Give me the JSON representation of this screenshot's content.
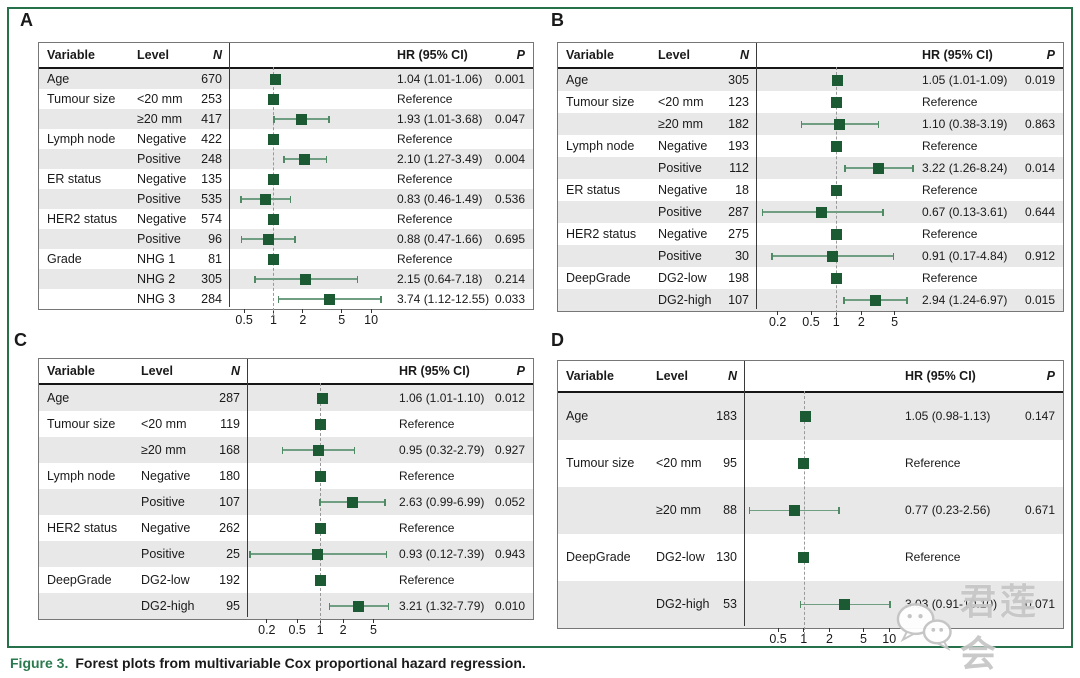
{
  "figure": {
    "caption_label": "Figure 3.",
    "caption_text": "Forest plots from multivariable Cox proportional hazard regression.",
    "watermark": "君莲会"
  },
  "colors": {
    "marker_green": "#1b5a33",
    "ci_line_green": "#6f9e82",
    "ci_cap_green": "#4e8a64",
    "stripe_gray": "#e8e8e8",
    "border_green": "#26704a",
    "caption_green": "#2b7a4e",
    "ref_line_gray": "#999999"
  },
  "columns": {
    "variable": "Variable",
    "level": "Level",
    "n": "N",
    "hr": "HR (95% CI)",
    "p": "P"
  },
  "chart_data": [
    {
      "type": "forest",
      "panel": "A",
      "scale": "log",
      "ref_line": 1,
      "axis_ticks": [
        0.5,
        1,
        2,
        5,
        10
      ],
      "axis_range": [
        0.35,
        16
      ],
      "rows": [
        {
          "variable": "Age",
          "level": "",
          "n": 670,
          "hr": 1.04,
          "lo": 1.01,
          "hi": 1.06,
          "hr_text": "1.04 (1.01-1.06)",
          "p": "0.001"
        },
        {
          "variable": "Tumour size",
          "level": "<20 mm",
          "n": 253,
          "ref": true,
          "hr_text": "Reference",
          "p": ""
        },
        {
          "variable": "",
          "level": "≥20 mm",
          "n": 417,
          "hr": 1.93,
          "lo": 1.01,
          "hi": 3.68,
          "hr_text": "1.93 (1.01-3.68)",
          "p": "0.047"
        },
        {
          "variable": "Lymph node",
          "level": "Negative",
          "n": 422,
          "ref": true,
          "hr_text": "Reference",
          "p": ""
        },
        {
          "variable": "",
          "level": "Positive",
          "n": 248,
          "hr": 2.1,
          "lo": 1.27,
          "hi": 3.49,
          "hr_text": "2.10 (1.27-3.49)",
          "p": "0.004"
        },
        {
          "variable": "ER status",
          "level": "Negative",
          "n": 135,
          "ref": true,
          "hr_text": "Reference",
          "p": ""
        },
        {
          "variable": "",
          "level": "Positive",
          "n": 535,
          "hr": 0.83,
          "lo": 0.46,
          "hi": 1.49,
          "hr_text": "0.83 (0.46-1.49)",
          "p": "0.536"
        },
        {
          "variable": "HER2 status",
          "level": "Negative",
          "n": 574,
          "ref": true,
          "hr_text": "Reference",
          "p": ""
        },
        {
          "variable": "",
          "level": "Positive",
          "n": 96,
          "hr": 0.88,
          "lo": 0.47,
          "hi": 1.66,
          "hr_text": "0.88 (0.47-1.66)",
          "p": "0.695"
        },
        {
          "variable": "Grade",
          "level": "NHG 1",
          "n": 81,
          "ref": true,
          "hr_text": "Reference",
          "p": ""
        },
        {
          "variable": "",
          "level": "NHG 2",
          "n": 305,
          "hr": 2.15,
          "lo": 0.64,
          "hi": 7.18,
          "hr_text": "2.15 (0.64-7.18)",
          "p": "0.214"
        },
        {
          "variable": "",
          "level": "NHG 3",
          "n": 284,
          "hr": 3.74,
          "lo": 1.12,
          "hi": 12.55,
          "hr_text": "3.74 (1.12-12.55)",
          "p": "0.033"
        }
      ]
    },
    {
      "type": "forest",
      "panel": "B",
      "scale": "log",
      "ref_line": 1,
      "axis_ticks": [
        0.2,
        0.5,
        1,
        2,
        5
      ],
      "axis_range": [
        0.11,
        9
      ],
      "rows": [
        {
          "variable": "Age",
          "level": "",
          "n": 305,
          "hr": 1.05,
          "lo": 1.01,
          "hi": 1.09,
          "hr_text": "1.05 (1.01-1.09)",
          "p": "0.019"
        },
        {
          "variable": "Tumour size",
          "level": "<20 mm",
          "n": 123,
          "ref": true,
          "hr_text": "Reference",
          "p": ""
        },
        {
          "variable": "",
          "level": "≥20 mm",
          "n": 182,
          "hr": 1.1,
          "lo": 0.38,
          "hi": 3.19,
          "hr_text": "1.10 (0.38-3.19)",
          "p": "0.863"
        },
        {
          "variable": "Lymph node",
          "level": "Negative",
          "n": 193,
          "ref": true,
          "hr_text": "Reference",
          "p": ""
        },
        {
          "variable": "",
          "level": "Positive",
          "n": 112,
          "hr": 3.22,
          "lo": 1.26,
          "hi": 8.24,
          "hr_text": "3.22 (1.26-8.24)",
          "p": "0.014"
        },
        {
          "variable": "ER status",
          "level": "Negative",
          "n": 18,
          "ref": true,
          "hr_text": "Reference",
          "p": ""
        },
        {
          "variable": "",
          "level": "Positive",
          "n": 287,
          "hr": 0.67,
          "lo": 0.13,
          "hi": 3.61,
          "hr_text": "0.67 (0.13-3.61)",
          "p": "0.644"
        },
        {
          "variable": "HER2 status",
          "level": "Negative",
          "n": 275,
          "ref": true,
          "hr_text": "Reference",
          "p": ""
        },
        {
          "variable": "",
          "level": "Positive",
          "n": 30,
          "hr": 0.91,
          "lo": 0.17,
          "hi": 4.84,
          "hr_text": "0.91 (0.17-4.84)",
          "p": "0.912"
        },
        {
          "variable": "DeepGrade",
          "level": "DG2-low",
          "n": 198,
          "ref": true,
          "hr_text": "Reference",
          "p": ""
        },
        {
          "variable": "",
          "level": "DG2-high",
          "n": 107,
          "hr": 2.94,
          "lo": 1.24,
          "hi": 6.97,
          "hr_text": "2.94 (1.24-6.97)",
          "p": "0.015"
        }
      ]
    },
    {
      "type": "forest",
      "panel": "C",
      "scale": "log",
      "ref_line": 1,
      "axis_ticks": [
        0.2,
        0.5,
        1,
        2,
        5
      ],
      "axis_range": [
        0.11,
        9
      ],
      "rows": [
        {
          "variable": "Age",
          "level": "",
          "n": 287,
          "hr": 1.06,
          "lo": 1.01,
          "hi": 1.1,
          "hr_text": "1.06 (1.01-1.10)",
          "p": "0.012"
        },
        {
          "variable": "Tumour size",
          "level": "<20 mm",
          "n": 119,
          "ref": true,
          "hr_text": "Reference",
          "p": ""
        },
        {
          "variable": "",
          "level": "≥20 mm",
          "n": 168,
          "hr": 0.95,
          "lo": 0.32,
          "hi": 2.79,
          "hr_text": "0.95 (0.32-2.79)",
          "p": "0.927"
        },
        {
          "variable": "Lymph node",
          "level": "Negative",
          "n": 180,
          "ref": true,
          "hr_text": "Reference",
          "p": ""
        },
        {
          "variable": "",
          "level": "Positive",
          "n": 107,
          "hr": 2.63,
          "lo": 0.99,
          "hi": 6.99,
          "hr_text": "2.63 (0.99-6.99)",
          "p": "0.052"
        },
        {
          "variable": "HER2 status",
          "level": "Negative",
          "n": 262,
          "ref": true,
          "hr_text": "Reference",
          "p": ""
        },
        {
          "variable": "",
          "level": "Positive",
          "n": 25,
          "hr": 0.93,
          "lo": 0.12,
          "hi": 7.39,
          "hr_text": "0.93 (0.12-7.39)",
          "p": "0.943"
        },
        {
          "variable": "DeepGrade",
          "level": "DG2-low",
          "n": 192,
          "ref": true,
          "hr_text": "Reference",
          "p": ""
        },
        {
          "variable": "",
          "level": "DG2-high",
          "n": 95,
          "hr": 3.21,
          "lo": 1.32,
          "hi": 7.79,
          "hr_text": "3.21 (1.32-7.79)",
          "p": "0.010"
        }
      ]
    },
    {
      "type": "forest",
      "panel": "D",
      "scale": "log",
      "ref_line": 1,
      "axis_ticks": [
        0.5,
        1,
        2,
        5,
        10
      ],
      "axis_range": [
        0.2,
        13
      ],
      "rows": [
        {
          "variable": "Age",
          "level": "",
          "n": 183,
          "hr": 1.05,
          "lo": 0.98,
          "hi": 1.13,
          "hr_text": "1.05 (0.98-1.13)",
          "p": "0.147"
        },
        {
          "variable": "Tumour size",
          "level": "<20 mm",
          "n": 95,
          "ref": true,
          "hr_text": "Reference",
          "p": ""
        },
        {
          "variable": "",
          "level": "≥20 mm",
          "n": 88,
          "hr": 0.77,
          "lo": 0.23,
          "hi": 2.56,
          "hr_text": "0.77 (0.23-2.56)",
          "p": "0.671"
        },
        {
          "variable": "DeepGrade",
          "level": "DG2-low",
          "n": 130,
          "ref": true,
          "hr_text": "Reference",
          "p": ""
        },
        {
          "variable": "",
          "level": "DG2-high",
          "n": 53,
          "hr": 3.03,
          "lo": 0.91,
          "hi": 10.1,
          "hr_text": "3.03 (0.91-10.10)",
          "p": "0.071"
        }
      ]
    }
  ]
}
